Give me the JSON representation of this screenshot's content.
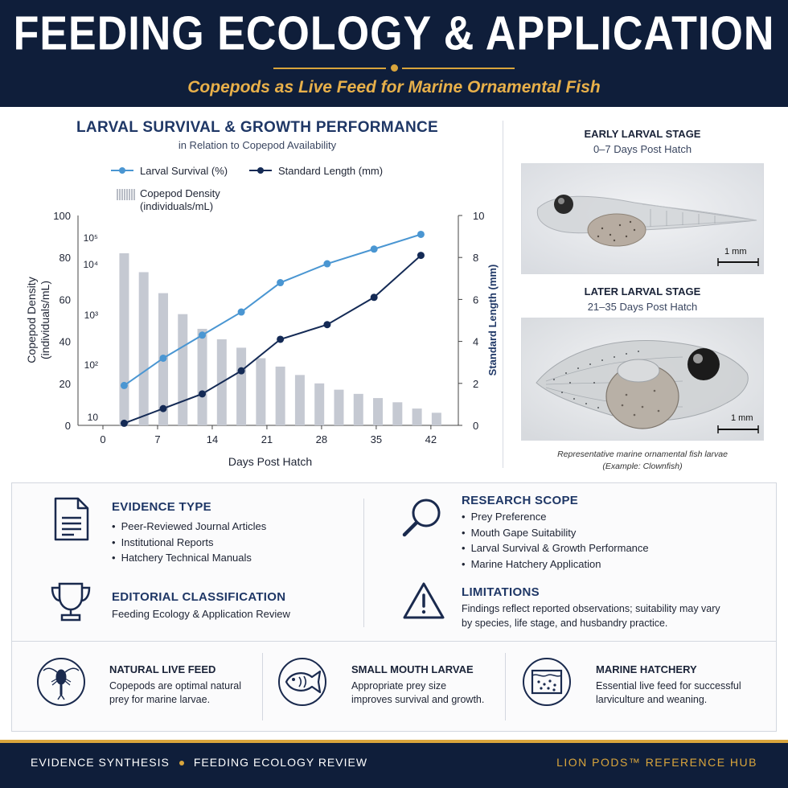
{
  "header": {
    "title": "FEEDING ECOLOGY & APPLICATION",
    "subtitle": "Copepods as Live Feed for Marine Ornamental Fish"
  },
  "chart_data": {
    "type": "bar+line",
    "title": "LARVAL SURVIVAL & GROWTH PERFORMANCE",
    "subtitle": "in Relation to Copepod Availability",
    "xlabel": "Days Post Hatch",
    "ylabel_left": "Copepod Density (individuals/mL)",
    "ylabel_right": "Standard Length (mm)",
    "x_ticks": [
      "0",
      "7",
      "14",
      "21",
      "28",
      "35",
      "42"
    ],
    "xlim": [
      0,
      45
    ],
    "y_left_ticks": [
      "0",
      "20",
      "40",
      "60",
      "80",
      "100"
    ],
    "y_left_lim": [
      0,
      100
    ],
    "y_right_ticks": [
      "0",
      "2",
      "4",
      "6",
      "8",
      "10"
    ],
    "y_right_lim": [
      0,
      10
    ],
    "log_density_labels": [
      "10",
      "10²",
      "10³",
      "10⁴",
      "10⁵"
    ],
    "legend": {
      "survival": "Larval Survival (%)",
      "length": "Standard Length (mm)",
      "density_line1": "Copepod Density",
      "density_line2": "(individuals/mL)"
    },
    "colors": {
      "survival": "#4a96d2",
      "length": "#142a55",
      "density": "#c5c9d2"
    },
    "series": [
      {
        "name": "Copepod Density (individuals/mL)",
        "kind": "bar",
        "x": [
          2,
          4.5,
          7,
          9.5,
          12,
          14.5,
          17,
          19.5,
          22,
          24.5,
          27,
          29.5,
          32,
          34.5,
          37,
          39.5,
          42
        ],
        "values": [
          82,
          73,
          63,
          53,
          46,
          41,
          37,
          32,
          28,
          24,
          20,
          17,
          15,
          13,
          11,
          8,
          6
        ]
      },
      {
        "name": "Larval Survival (%)",
        "kind": "line",
        "x": [
          2,
          7,
          12,
          17,
          22,
          28,
          34,
          40
        ],
        "values": [
          19,
          32,
          43,
          54,
          68,
          77,
          84,
          91
        ]
      },
      {
        "name": "Standard Length (mm)",
        "kind": "line",
        "axis": "right",
        "x": [
          2,
          7,
          12,
          17,
          22,
          28,
          34,
          40
        ],
        "values": [
          0.1,
          0.8,
          1.5,
          2.6,
          4.1,
          4.8,
          6.1,
          8.1
        ]
      }
    ]
  },
  "photos": {
    "early": {
      "label": "EARLY LARVAL STAGE",
      "days": "0–7 Days Post Hatch",
      "scale": "1 mm"
    },
    "later": {
      "label": "LATER LARVAL STAGE",
      "days": "21–35 Days Post Hatch",
      "scale": "1 mm"
    },
    "caption_line1": "Representative marine ornamental fish larvae",
    "caption_line2": "(Example: Clownfish)"
  },
  "info": {
    "evidence": {
      "title": "EVIDENCE TYPE",
      "items": [
        "Peer-Reviewed Journal Articles",
        "Institutional Reports",
        "Hatchery Technical Manuals"
      ]
    },
    "scope": {
      "title": "RESEARCH SCOPE",
      "items": [
        "Prey Preference",
        "Mouth Gape Suitability",
        "Larval Survival & Growth Performance",
        "Marine Hatchery Application"
      ]
    },
    "classification": {
      "title": "EDITORIAL CLASSIFICATION",
      "text": "Feeding Ecology & Application Review"
    },
    "limitations": {
      "title": "LIMITATIONS",
      "line1": "Findings reflect reported observations; suitability may vary",
      "line2": "by species, life stage, and husbandry practice."
    }
  },
  "features": [
    {
      "title": "NATURAL LIVE FEED",
      "line1": "Copepods are optimal natural",
      "line2": "prey for marine larvae.",
      "icon": "copepod-icon"
    },
    {
      "title": "SMALL MOUTH LARVAE",
      "line1": "Appropriate prey size",
      "line2": "improves survival and growth.",
      "icon": "fish-icon"
    },
    {
      "title": "MARINE HATCHERY",
      "line1": "Essential live feed for successful",
      "line2": "larviculture and weaning.",
      "icon": "tank-icon"
    }
  ],
  "footer": {
    "left1": "EVIDENCE SYNTHESIS",
    "left2": "FEEDING ECOLOGY REVIEW",
    "right": "LION PODS™ REFERENCE HUB"
  }
}
